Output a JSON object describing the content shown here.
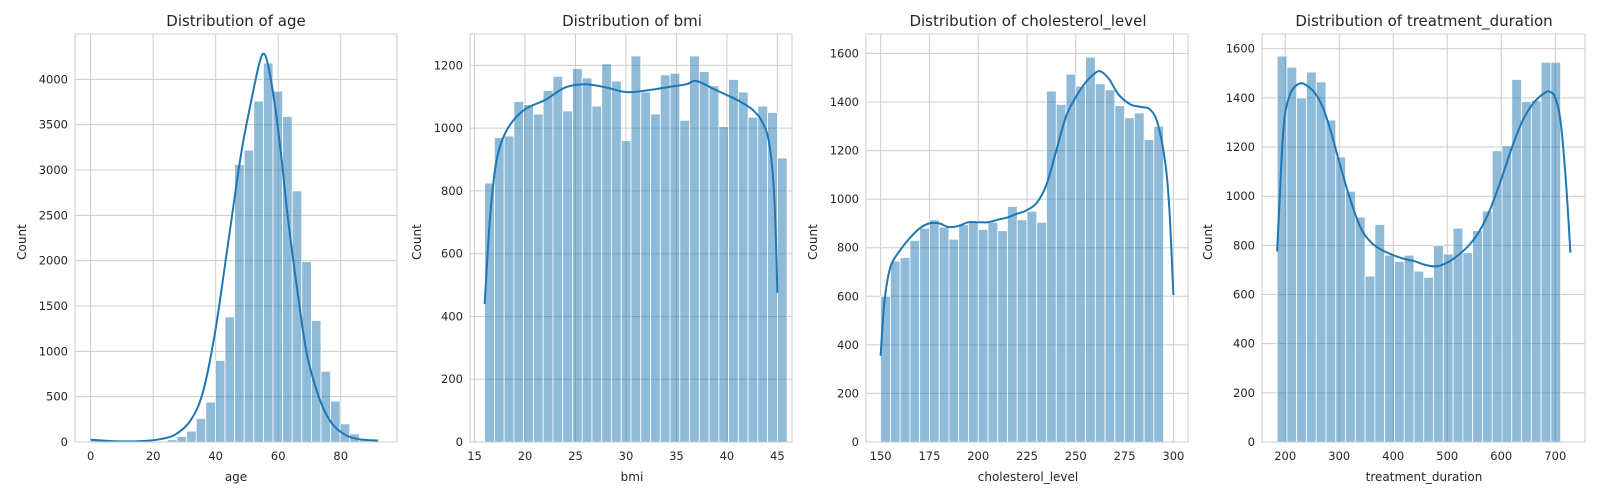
{
  "chart_data": [
    {
      "type": "bar",
      "title": "Distribution of age",
      "xlabel": "age",
      "ylabel": "Count",
      "xlim": [
        -5,
        98
      ],
      "ylim": [
        0,
        4500
      ],
      "xticks": [
        0,
        20,
        40,
        60,
        80
      ],
      "yticks": [
        0,
        500,
        1000,
        1500,
        2000,
        2500,
        3000,
        3500,
        4000
      ],
      "grid": true,
      "bin_start": 0,
      "bin_width": 3.07,
      "values": [
        20,
        0,
        0,
        0,
        0,
        0,
        5,
        10,
        25,
        60,
        120,
        260,
        440,
        900,
        1380,
        3060,
        3220,
        3760,
        4180,
        3870,
        3590,
        2770,
        1990,
        1340,
        780,
        450,
        200,
        90,
        40,
        15
      ],
      "kde": [
        [
          0,
          25
        ],
        [
          8,
          8
        ],
        [
          16,
          10
        ],
        [
          22,
          30
        ],
        [
          27,
          80
        ],
        [
          32,
          240
        ],
        [
          36,
          560
        ],
        [
          40,
          1250
        ],
        [
          44,
          2200
        ],
        [
          48,
          3150
        ],
        [
          51,
          3700
        ],
        [
          54,
          4180
        ],
        [
          55.5,
          4280
        ],
        [
          57,
          4120
        ],
        [
          59,
          3700
        ],
        [
          61,
          3150
        ],
        [
          63,
          2500
        ],
        [
          66,
          1700
        ],
        [
          69,
          1000
        ],
        [
          72,
          600
        ],
        [
          75,
          330
        ],
        [
          78,
          170
        ],
        [
          82,
          70
        ],
        [
          86,
          30
        ],
        [
          92,
          15
        ]
      ]
    },
    {
      "type": "bar",
      "title": "Distribution of bmi",
      "xlabel": "bmi",
      "ylabel": "Count",
      "xlim": [
        14.55,
        46.45
      ],
      "ylim": [
        0,
        1300
      ],
      "xticks": [
        15,
        20,
        25,
        30,
        35,
        40,
        45
      ],
      "yticks": [
        0,
        200,
        400,
        600,
        800,
        1000,
        1200
      ],
      "grid": true,
      "bin_start": 16.0,
      "bin_width": 0.9667,
      "values": [
        825,
        970,
        975,
        1085,
        1075,
        1045,
        1120,
        1165,
        1055,
        1190,
        1160,
        1070,
        1205,
        1150,
        960,
        1230,
        1115,
        1045,
        1170,
        1175,
        1025,
        1230,
        1180,
        1135,
        1005,
        1155,
        1115,
        1035,
        1070,
        1050,
        905
      ],
      "kde": [
        [
          16.0,
          440
        ],
        [
          16.5,
          700
        ],
        [
          17.0,
          860
        ],
        [
          17.5,
          940
        ],
        [
          18.5,
          1010
        ],
        [
          20,
          1060
        ],
        [
          22,
          1090
        ],
        [
          24,
          1130
        ],
        [
          26,
          1140
        ],
        [
          28,
          1130
        ],
        [
          30,
          1115
        ],
        [
          32,
          1120
        ],
        [
          34,
          1130
        ],
        [
          36,
          1140
        ],
        [
          37,
          1150
        ],
        [
          39,
          1120
        ],
        [
          41,
          1090
        ],
        [
          42.5,
          1060
        ],
        [
          43.5,
          1020
        ],
        [
          44.2,
          950
        ],
        [
          44.7,
          780
        ],
        [
          45.0,
          475
        ]
      ]
    },
    {
      "type": "bar",
      "title": "Distribution of cholesterol_level",
      "xlabel": "cholesterol_level",
      "ylabel": "Count",
      "xlim": [
        142.5,
        307.5
      ],
      "ylim": [
        0,
        1680
      ],
      "xticks": [
        150,
        175,
        200,
        225,
        250,
        275,
        300
      ],
      "yticks": [
        0,
        200,
        400,
        600,
        800,
        1000,
        1200,
        1400,
        1600
      ],
      "grid": true,
      "bin_start": 150,
      "bin_width": 5.0,
      "values": [
        600,
        745,
        760,
        830,
        880,
        915,
        885,
        835,
        895,
        905,
        875,
        905,
        870,
        970,
        915,
        950,
        905,
        1445,
        1390,
        1515,
        1465,
        1585,
        1475,
        1450,
        1385,
        1335,
        1355,
        1245,
        1300
      ],
      "kde": [
        [
          150,
          355
        ],
        [
          152,
          580
        ],
        [
          155,
          720
        ],
        [
          160,
          790
        ],
        [
          165,
          840
        ],
        [
          170,
          880
        ],
        [
          175,
          900
        ],
        [
          180,
          900
        ],
        [
          185,
          885
        ],
        [
          190,
          890
        ],
        [
          195,
          905
        ],
        [
          200,
          905
        ],
        [
          205,
          905
        ],
        [
          210,
          915
        ],
        [
          215,
          925
        ],
        [
          220,
          940
        ],
        [
          225,
          955
        ],
        [
          230,
          985
        ],
        [
          235,
          1060
        ],
        [
          240,
          1200
        ],
        [
          245,
          1340
        ],
        [
          250,
          1420
        ],
        [
          255,
          1480
        ],
        [
          260,
          1520
        ],
        [
          263,
          1525
        ],
        [
          267,
          1495
        ],
        [
          272,
          1430
        ],
        [
          278,
          1390
        ],
        [
          283,
          1380
        ],
        [
          288,
          1370
        ],
        [
          292,
          1310
        ],
        [
          296,
          1140
        ],
        [
          298,
          950
        ],
        [
          300,
          605
        ]
      ]
    },
    {
      "type": "bar",
      "title": "Distribution of treatment_duration",
      "xlabel": "treatment_duration",
      "ylabel": "Count",
      "xlim": [
        157,
        755
      ],
      "ylim": [
        0,
        1660
      ],
      "xticks": [
        200,
        300,
        400,
        500,
        600,
        700
      ],
      "yticks": [
        0,
        200,
        400,
        600,
        800,
        1000,
        1200,
        1400,
        1600
      ],
      "grid": true,
      "bin_start": 185,
      "bin_width": 18.1,
      "values": [
        1570,
        1525,
        1400,
        1505,
        1465,
        1310,
        1160,
        1020,
        915,
        675,
        885,
        760,
        735,
        760,
        695,
        670,
        800,
        765,
        870,
        770,
        860,
        940,
        1185,
        1205,
        1475,
        1385,
        1390,
        1545,
        1545
      ],
      "kde": [
        [
          185,
          775
        ],
        [
          190,
          1000
        ],
        [
          195,
          1220
        ],
        [
          200,
          1340
        ],
        [
          210,
          1420
        ],
        [
          220,
          1450
        ],
        [
          230,
          1460
        ],
        [
          240,
          1450
        ],
        [
          255,
          1420
        ],
        [
          270,
          1360
        ],
        [
          285,
          1260
        ],
        [
          300,
          1140
        ],
        [
          320,
          990
        ],
        [
          340,
          870
        ],
        [
          360,
          810
        ],
        [
          380,
          780
        ],
        [
          400,
          760
        ],
        [
          420,
          745
        ],
        [
          440,
          735
        ],
        [
          460,
          720
        ],
        [
          480,
          715
        ],
        [
          500,
          730
        ],
        [
          520,
          760
        ],
        [
          540,
          800
        ],
        [
          560,
          860
        ],
        [
          580,
          950
        ],
        [
          600,
          1070
        ],
        [
          620,
          1200
        ],
        [
          640,
          1310
        ],
        [
          660,
          1380
        ],
        [
          680,
          1420
        ],
        [
          690,
          1425
        ],
        [
          700,
          1400
        ],
        [
          710,
          1300
        ],
        [
          720,
          1050
        ],
        [
          728,
          770
        ]
      ]
    }
  ]
}
